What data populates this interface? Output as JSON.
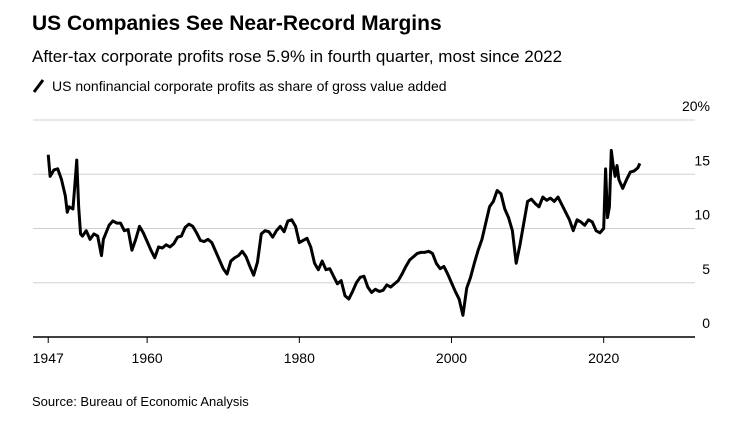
{
  "chart_data": {
    "type": "line",
    "title": "US Companies See Near-Record Margins",
    "subtitle": "After-tax corporate profits rose 5.9% in fourth quarter, most since 2022",
    "source": "Source: Bureau of Economic Analysis",
    "x": [
      1947,
      1947.25,
      1947.75,
      1948.25,
      1948.75,
      1949.25,
      1949.5,
      1949.75,
      1950.25,
      1950.5,
      1950.75,
      1951,
      1951.25,
      1951.5,
      1952,
      1952.5,
      1953,
      1953.5,
      1954,
      1954.25,
      1955,
      1955.5,
      1956,
      1956.5,
      1957,
      1957.5,
      1958,
      1958.5,
      1959,
      1959.5,
      1960,
      1960.5,
      1961,
      1961.5,
      1962,
      1962.5,
      1963,
      1963.5,
      1964,
      1964.5,
      1965,
      1965.5,
      1966,
      1966.5,
      1967,
      1967.5,
      1968,
      1968.5,
      1969,
      1969.5,
      1970,
      1970.5,
      1971,
      1971.5,
      1972,
      1972.5,
      1973,
      1973.5,
      1974,
      1974.5,
      1975,
      1975.5,
      1976,
      1976.5,
      1977,
      1977.5,
      1978,
      1978.5,
      1979,
      1979.5,
      1980,
      1980.5,
      1981,
      1981.5,
      1982,
      1982.5,
      1983,
      1983.5,
      1984,
      1984.5,
      1985,
      1985.5,
      1986,
      1986.5,
      1987,
      1987.5,
      1988,
      1988.5,
      1989,
      1989.5,
      1990,
      1990.5,
      1991,
      1991.5,
      1992,
      1992.5,
      1993,
      1993.5,
      1994,
      1994.5,
      1995,
      1995.5,
      1996,
      1996.5,
      1997,
      1997.5,
      1998,
      1998.5,
      1999,
      1999.5,
      2000,
      2000.5,
      2001,
      2001.5,
      2002,
      2002.5,
      2003,
      2003.5,
      2004,
      2004.5,
      2005,
      2005.5,
      2006,
      2006.5,
      2007,
      2007.5,
      2008,
      2008.5,
      2009,
      2009.5,
      2010,
      2010.5,
      2011,
      2011.5,
      2012,
      2012.5,
      2013,
      2013.5,
      2014,
      2014.5,
      2015,
      2015.5,
      2016,
      2016.5,
      2017,
      2017.5,
      2018,
      2018.5,
      2019,
      2019.5,
      2020,
      2020.25,
      2020.5,
      2020.75,
      2021,
      2021.25,
      2021.5,
      2021.75,
      2022,
      2022.5,
      2023,
      2023.5,
      2024,
      2024.5,
      2024.75
    ],
    "series": [
      {
        "name": "US nonfinancial corporate profits as share of gross value added",
        "color": "#000000",
        "values": [
          16.8,
          14.8,
          15.4,
          15.5,
          14.5,
          13,
          11.5,
          12,
          11.8,
          14,
          16.3,
          12,
          9.5,
          9.3,
          9.8,
          9.0,
          9.5,
          9.3,
          7.5,
          9,
          10.3,
          10.7,
          10.5,
          10.5,
          9.8,
          9.9,
          8.0,
          9.0,
          10.2,
          9.6,
          8.8,
          8.0,
          7.3,
          8.3,
          8.2,
          8.5,
          8.3,
          8.6,
          9.2,
          9.3,
          10.1,
          10.4,
          10.2,
          9.6,
          8.9,
          8.8,
          9.0,
          8.7,
          7.9,
          7.1,
          6.3,
          5.8,
          7,
          7.3,
          7.5,
          7.9,
          7.4,
          6.5,
          5.7,
          6.9,
          9.5,
          9.8,
          9.7,
          9.2,
          9.8,
          10.2,
          9.7,
          10.7,
          10.8,
          10.2,
          8.7,
          8.9,
          9.1,
          8.3,
          6.8,
          6.2,
          7.0,
          6.2,
          6.3,
          5.6,
          4.9,
          5.2,
          3.8,
          3.5,
          4.2,
          5.0,
          5.5,
          5.6,
          4.6,
          4.1,
          4.4,
          4.2,
          4.3,
          4.8,
          4.6,
          4.9,
          5.2,
          5.8,
          6.5,
          7.1,
          7.4,
          7.7,
          7.8,
          7.8,
          7.9,
          7.7,
          6.8,
          6.3,
          6.5,
          5.8,
          5.0,
          4.2,
          3.5,
          2.0,
          4.5,
          5.5,
          6.8,
          8.0,
          9.0,
          10.5,
          12,
          12.5,
          13.5,
          13.2,
          11.8,
          11.0,
          9.8,
          6.8,
          8.5,
          10.5,
          12.5,
          12.7,
          12.3,
          12.0,
          12.9,
          12.6,
          12.8,
          12.5,
          12.9,
          12.2,
          11.5,
          10.8,
          9.8,
          10.8,
          10.6,
          10.3,
          10.8,
          10.6,
          9.8,
          9.6,
          10.0,
          15.5,
          11.0,
          12.0,
          17.2,
          15.8,
          14.8,
          15.8,
          14.5,
          13.7,
          14.5,
          15.2,
          15.3,
          15.6,
          16.0
        ]
      }
    ],
    "xlim": [
      1945,
      2032
    ],
    "xticks": [
      1947,
      1960,
      1980,
      2000,
      2020
    ],
    "ylim": [
      0,
      20
    ],
    "yticks": [
      0,
      5,
      10,
      15,
      {
        "value": 20,
        "label": "20%"
      }
    ],
    "grid": true
  }
}
